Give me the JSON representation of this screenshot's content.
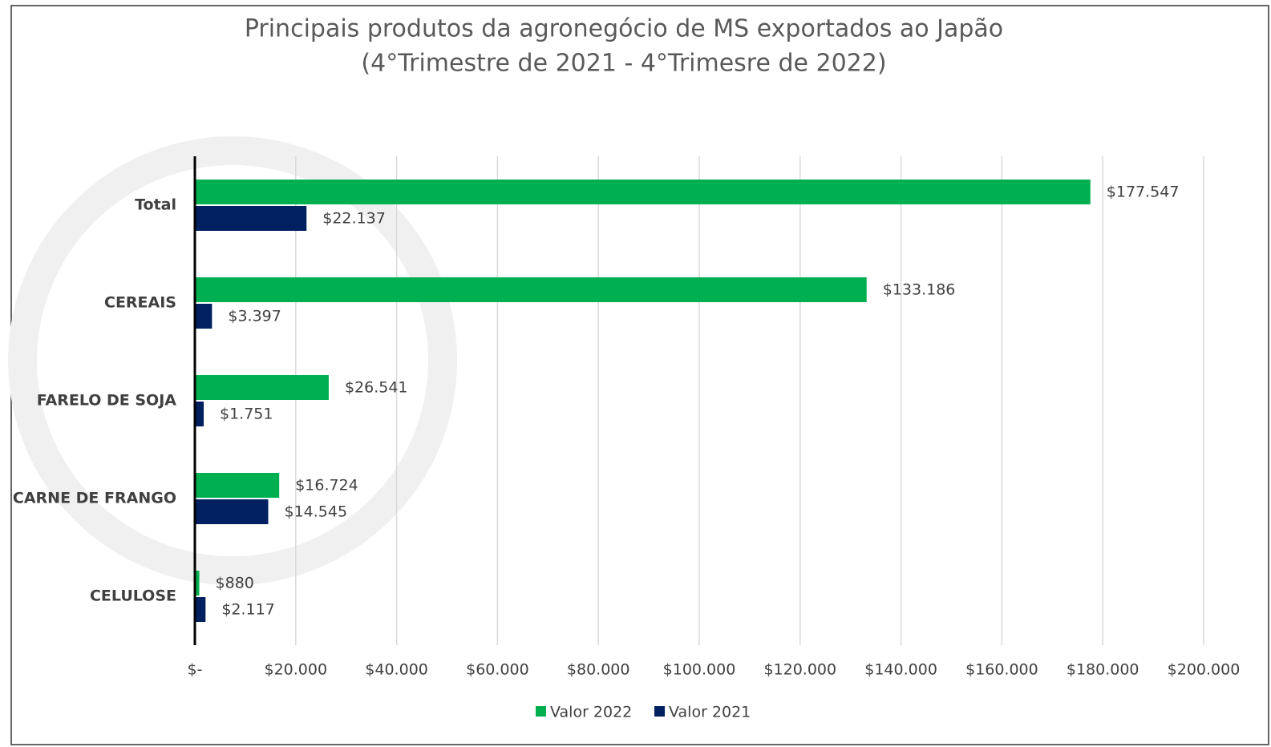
{
  "chart_data": {
    "type": "hbar",
    "title": "Principais produtos da agronegócio de MS exportados  ao Japão",
    "subtitle": "(4°Trimestre de 2021 - 4°Trimesre de 2022)",
    "categories": [
      "Total",
      "CEREAIS",
      "FARELO DE SOJA",
      "CARNE DE FRANGO",
      "CELULOSE"
    ],
    "series": [
      {
        "name": "Valor 2022",
        "color": "#00b050",
        "values": [
          177547,
          133186,
          26541,
          16724,
          880
        ],
        "value_labels": [
          "$177.547",
          "$133.186",
          "$26.541",
          "$16.724",
          "$880"
        ]
      },
      {
        "name": "Valor 2021",
        "color": "#002060",
        "values": [
          22137,
          3397,
          1751,
          14545,
          2117
        ],
        "value_labels": [
          "$22.137",
          "$3.397",
          "$1.751",
          "$14.545",
          "$2.117"
        ]
      }
    ],
    "xlim": [
      0,
      200000
    ],
    "xticks": [
      {
        "value": 0,
        "label": "$-"
      },
      {
        "value": 20000,
        "label": "$20.000"
      },
      {
        "value": 40000,
        "label": "$40.000"
      },
      {
        "value": 60000,
        "label": "$60.000"
      },
      {
        "value": 80000,
        "label": "$80.000"
      },
      {
        "value": 100000,
        "label": "$100.000"
      },
      {
        "value": 120000,
        "label": "$120.000"
      },
      {
        "value": 140000,
        "label": "$140.000"
      },
      {
        "value": 160000,
        "label": "$160.000"
      },
      {
        "value": 180000,
        "label": "$180.000"
      },
      {
        "value": 200000,
        "label": "$200.000"
      }
    ],
    "grid": true,
    "legend": "bottom"
  }
}
